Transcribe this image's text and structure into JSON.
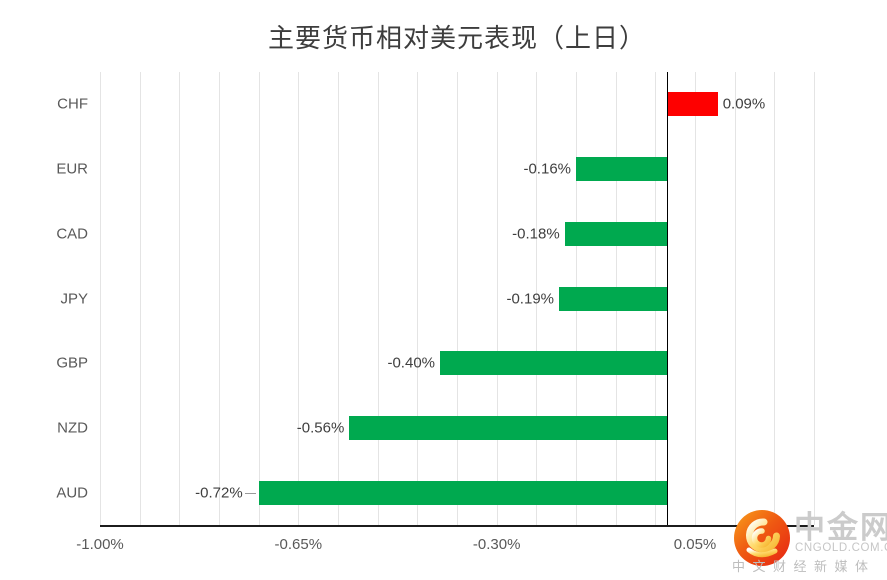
{
  "chart_data": {
    "type": "bar",
    "orientation": "horizontal",
    "title": "主要货币相对美元表现（上日）",
    "categories": [
      "CHF",
      "EUR",
      "CAD",
      "JPY",
      "GBP",
      "NZD",
      "AUD"
    ],
    "values": [
      0.09,
      -0.16,
      -0.18,
      -0.19,
      -0.4,
      -0.56,
      -0.72
    ],
    "data_labels": [
      "0.09%",
      "-0.16%",
      "-0.18%",
      "-0.19%",
      "-0.40%",
      "-0.56%",
      "-0.72%"
    ],
    "xlim": [
      -1.0,
      0.26
    ],
    "x_major_ticks": [
      {
        "value": -1.0,
        "label": "-1.00%"
      },
      {
        "value": -0.65,
        "label": "-0.65%"
      },
      {
        "value": -0.3,
        "label": "-0.30%"
      },
      {
        "value": 0.05,
        "label": "0.05%"
      }
    ],
    "x_minor_unit": 0.07,
    "grid": true,
    "legend": "none",
    "colors": {
      "positive": "#fe0000",
      "negative": "#00a94f"
    },
    "leader_line_categories": [
      "AUD"
    ]
  },
  "logo": {
    "name": "中金网",
    "domain": "CNGOLD.COM.CN",
    "tagline": "中文财经新媒体"
  }
}
